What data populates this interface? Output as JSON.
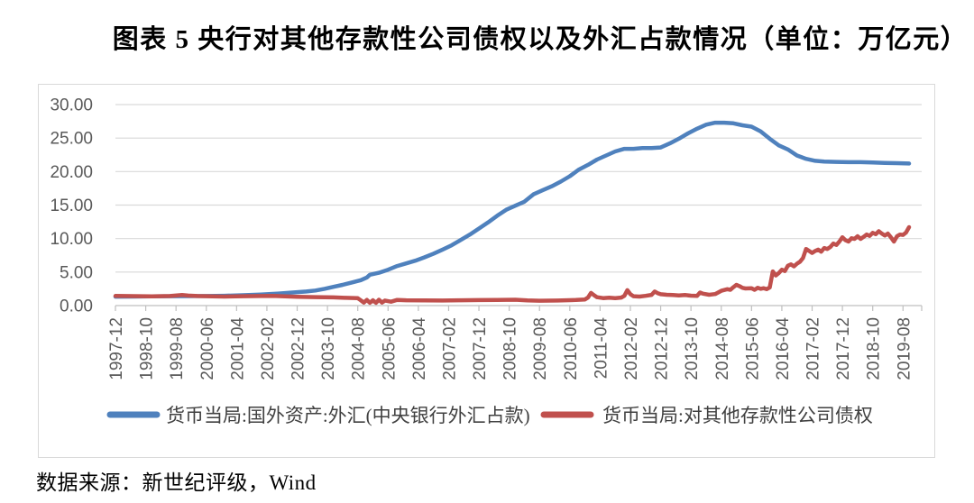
{
  "page": {
    "title": "图表 5  央行对其他存款性公司债权以及外汇占款情况（单位：万亿元）",
    "source": "数据来源：新世纪评级，Wind"
  },
  "chart_data": {
    "type": "line",
    "title": "央行对其他存款性公司债权以及外汇占款情况",
    "unit": "万亿元",
    "x_start_month": "1997-12",
    "x_end_month": "2019-10",
    "x_months_total": 263,
    "x_tick_every_months": 10,
    "x_tick_labels": [
      "1997-12",
      "1998-10",
      "1999-08",
      "2000-06",
      "2001-04",
      "2002-02",
      "2002-12",
      "2003-10",
      "2004-08",
      "2005-06",
      "2006-04",
      "2007-02",
      "2007-12",
      "2008-10",
      "2009-08",
      "2010-06",
      "2011-04",
      "2012-02",
      "2012-12",
      "2013-10",
      "2014-08",
      "2015-06",
      "2016-04",
      "2017-02",
      "2017-12",
      "2018-10",
      "2019-08"
    ],
    "ylim": [
      0,
      30
    ],
    "y_tick_labels": [
      "0.00",
      "5.00",
      "10.00",
      "15.00",
      "20.00",
      "25.00",
      "30.00"
    ],
    "grid": true,
    "legend_position": "bottom",
    "colors": {
      "grid": "#d9d9d9",
      "axis": "#bfbfbf",
      "tick_text": "#595959",
      "legend_text": "#404040"
    },
    "series": [
      {
        "name": "货币当局:国外资产:外汇(中央银行外汇占款)",
        "color": "#4F81BD",
        "points": [
          [
            0,
            1.33
          ],
          [
            6,
            1.34
          ],
          [
            12,
            1.38
          ],
          [
            18,
            1.4
          ],
          [
            24,
            1.41
          ],
          [
            30,
            1.43
          ],
          [
            36,
            1.47
          ],
          [
            42,
            1.55
          ],
          [
            48,
            1.65
          ],
          [
            54,
            1.8
          ],
          [
            60,
            2.0
          ],
          [
            63,
            2.1
          ],
          [
            66,
            2.25
          ],
          [
            69,
            2.5
          ],
          [
            72,
            2.8
          ],
          [
            75,
            3.1
          ],
          [
            78,
            3.45
          ],
          [
            81,
            3.8
          ],
          [
            83,
            4.2
          ],
          [
            84,
            4.6
          ],
          [
            87,
            4.9
          ],
          [
            90,
            5.35
          ],
          [
            93,
            5.9
          ],
          [
            96,
            6.3
          ],
          [
            99,
            6.7
          ],
          [
            102,
            7.2
          ],
          [
            105,
            7.75
          ],
          [
            108,
            8.35
          ],
          [
            111,
            9.0
          ],
          [
            114,
            9.8
          ],
          [
            117,
            10.6
          ],
          [
            120,
            11.5
          ],
          [
            123,
            12.4
          ],
          [
            126,
            13.4
          ],
          [
            129,
            14.3
          ],
          [
            132,
            14.9
          ],
          [
            135,
            15.5
          ],
          [
            138,
            16.6
          ],
          [
            141,
            17.2
          ],
          [
            144,
            17.8
          ],
          [
            147,
            18.5
          ],
          [
            150,
            19.3
          ],
          [
            153,
            20.3
          ],
          [
            156,
            21.0
          ],
          [
            159,
            21.8
          ],
          [
            162,
            22.4
          ],
          [
            165,
            23.0
          ],
          [
            168,
            23.4
          ],
          [
            171,
            23.4
          ],
          [
            174,
            23.5
          ],
          [
            177,
            23.5
          ],
          [
            180,
            23.6
          ],
          [
            183,
            24.2
          ],
          [
            186,
            24.9
          ],
          [
            189,
            25.7
          ],
          [
            192,
            26.4
          ],
          [
            195,
            27.0
          ],
          [
            198,
            27.3
          ],
          [
            201,
            27.3
          ],
          [
            204,
            27.2
          ],
          [
            207,
            26.9
          ],
          [
            210,
            26.7
          ],
          [
            213,
            26.0
          ],
          [
            216,
            24.9
          ],
          [
            219,
            23.9
          ],
          [
            222,
            23.3
          ],
          [
            225,
            22.4
          ],
          [
            228,
            21.9
          ],
          [
            231,
            21.6
          ],
          [
            234,
            21.5
          ],
          [
            238,
            21.45
          ],
          [
            242,
            21.4
          ],
          [
            246,
            21.4
          ],
          [
            250,
            21.35
          ],
          [
            254,
            21.3
          ],
          [
            258,
            21.25
          ],
          [
            262,
            21.2
          ]
        ]
      },
      {
        "name": "货币当局:对其他存款性公司债权",
        "color": "#C0504D",
        "points": [
          [
            0,
            1.44
          ],
          [
            6,
            1.41
          ],
          [
            12,
            1.38
          ],
          [
            18,
            1.43
          ],
          [
            22,
            1.58
          ],
          [
            24,
            1.5
          ],
          [
            27,
            1.42
          ],
          [
            32,
            1.38
          ],
          [
            36,
            1.35
          ],
          [
            42,
            1.4
          ],
          [
            48,
            1.42
          ],
          [
            52,
            1.45
          ],
          [
            56,
            1.38
          ],
          [
            60,
            1.32
          ],
          [
            66,
            1.27
          ],
          [
            72,
            1.22
          ],
          [
            76,
            1.16
          ],
          [
            80,
            1.1
          ],
          [
            81,
            0.78
          ],
          [
            82,
            0.45
          ],
          [
            83,
            0.85
          ],
          [
            84,
            0.42
          ],
          [
            85,
            0.8
          ],
          [
            86,
            0.42
          ],
          [
            87,
            0.88
          ],
          [
            88,
            0.45
          ],
          [
            89,
            0.75
          ],
          [
            91,
            0.58
          ],
          [
            93,
            0.85
          ],
          [
            96,
            0.8
          ],
          [
            102,
            0.78
          ],
          [
            108,
            0.76
          ],
          [
            114,
            0.79
          ],
          [
            120,
            0.82
          ],
          [
            126,
            0.85
          ],
          [
            132,
            0.88
          ],
          [
            136,
            0.78
          ],
          [
            140,
            0.72
          ],
          [
            146,
            0.75
          ],
          [
            152,
            0.83
          ],
          [
            155,
            0.92
          ],
          [
            156,
            1.2
          ],
          [
            157,
            1.9
          ],
          [
            158,
            1.55
          ],
          [
            159,
            1.25
          ],
          [
            161,
            1.12
          ],
          [
            163,
            1.18
          ],
          [
            165,
            1.12
          ],
          [
            167,
            1.2
          ],
          [
            168,
            1.45
          ],
          [
            169,
            2.3
          ],
          [
            170,
            1.7
          ],
          [
            171,
            1.4
          ],
          [
            173,
            1.35
          ],
          [
            175,
            1.45
          ],
          [
            177,
            1.6
          ],
          [
            178,
            2.1
          ],
          [
            179,
            1.85
          ],
          [
            180,
            1.7
          ],
          [
            182,
            1.62
          ],
          [
            184,
            1.58
          ],
          [
            186,
            1.52
          ],
          [
            188,
            1.58
          ],
          [
            190,
            1.48
          ],
          [
            192,
            1.45
          ],
          [
            193,
            1.95
          ],
          [
            194,
            1.78
          ],
          [
            196,
            1.62
          ],
          [
            198,
            1.72
          ],
          [
            200,
            2.2
          ],
          [
            202,
            2.45
          ],
          [
            203,
            2.35
          ],
          [
            204,
            2.75
          ],
          [
            205,
            3.1
          ],
          [
            206,
            2.9
          ],
          [
            207,
            2.65
          ],
          [
            208,
            2.55
          ],
          [
            210,
            2.6
          ],
          [
            211,
            2.35
          ],
          [
            212,
            2.65
          ],
          [
            213,
            2.5
          ],
          [
            214,
            2.6
          ],
          [
            215,
            2.45
          ],
          [
            216,
            2.7
          ],
          [
            217,
            5.1
          ],
          [
            218,
            4.5
          ],
          [
            219,
            4.85
          ],
          [
            220,
            5.35
          ],
          [
            221,
            5.15
          ],
          [
            222,
            5.95
          ],
          [
            223,
            6.15
          ],
          [
            224,
            5.85
          ],
          [
            225,
            6.25
          ],
          [
            226,
            6.55
          ],
          [
            227,
            7.1
          ],
          [
            228,
            8.45
          ],
          [
            229,
            8.15
          ],
          [
            230,
            7.85
          ],
          [
            231,
            8.15
          ],
          [
            232,
            8.35
          ],
          [
            233,
            8.05
          ],
          [
            234,
            8.6
          ],
          [
            235,
            8.45
          ],
          [
            236,
            8.75
          ],
          [
            237,
            9.25
          ],
          [
            238,
            9.05
          ],
          [
            239,
            9.55
          ],
          [
            240,
            10.2
          ],
          [
            241,
            9.75
          ],
          [
            242,
            9.55
          ],
          [
            243,
            10.05
          ],
          [
            244,
            9.95
          ],
          [
            245,
            10.35
          ],
          [
            246,
            9.95
          ],
          [
            247,
            10.25
          ],
          [
            248,
            10.6
          ],
          [
            249,
            10.4
          ],
          [
            250,
            10.85
          ],
          [
            251,
            10.65
          ],
          [
            252,
            11.1
          ],
          [
            253,
            10.75
          ],
          [
            254,
            10.45
          ],
          [
            255,
            10.75
          ],
          [
            256,
            10.2
          ],
          [
            257,
            9.55
          ],
          [
            258,
            10.35
          ],
          [
            259,
            10.6
          ],
          [
            260,
            10.55
          ],
          [
            261,
            10.9
          ],
          [
            262,
            11.7
          ]
        ]
      }
    ]
  }
}
